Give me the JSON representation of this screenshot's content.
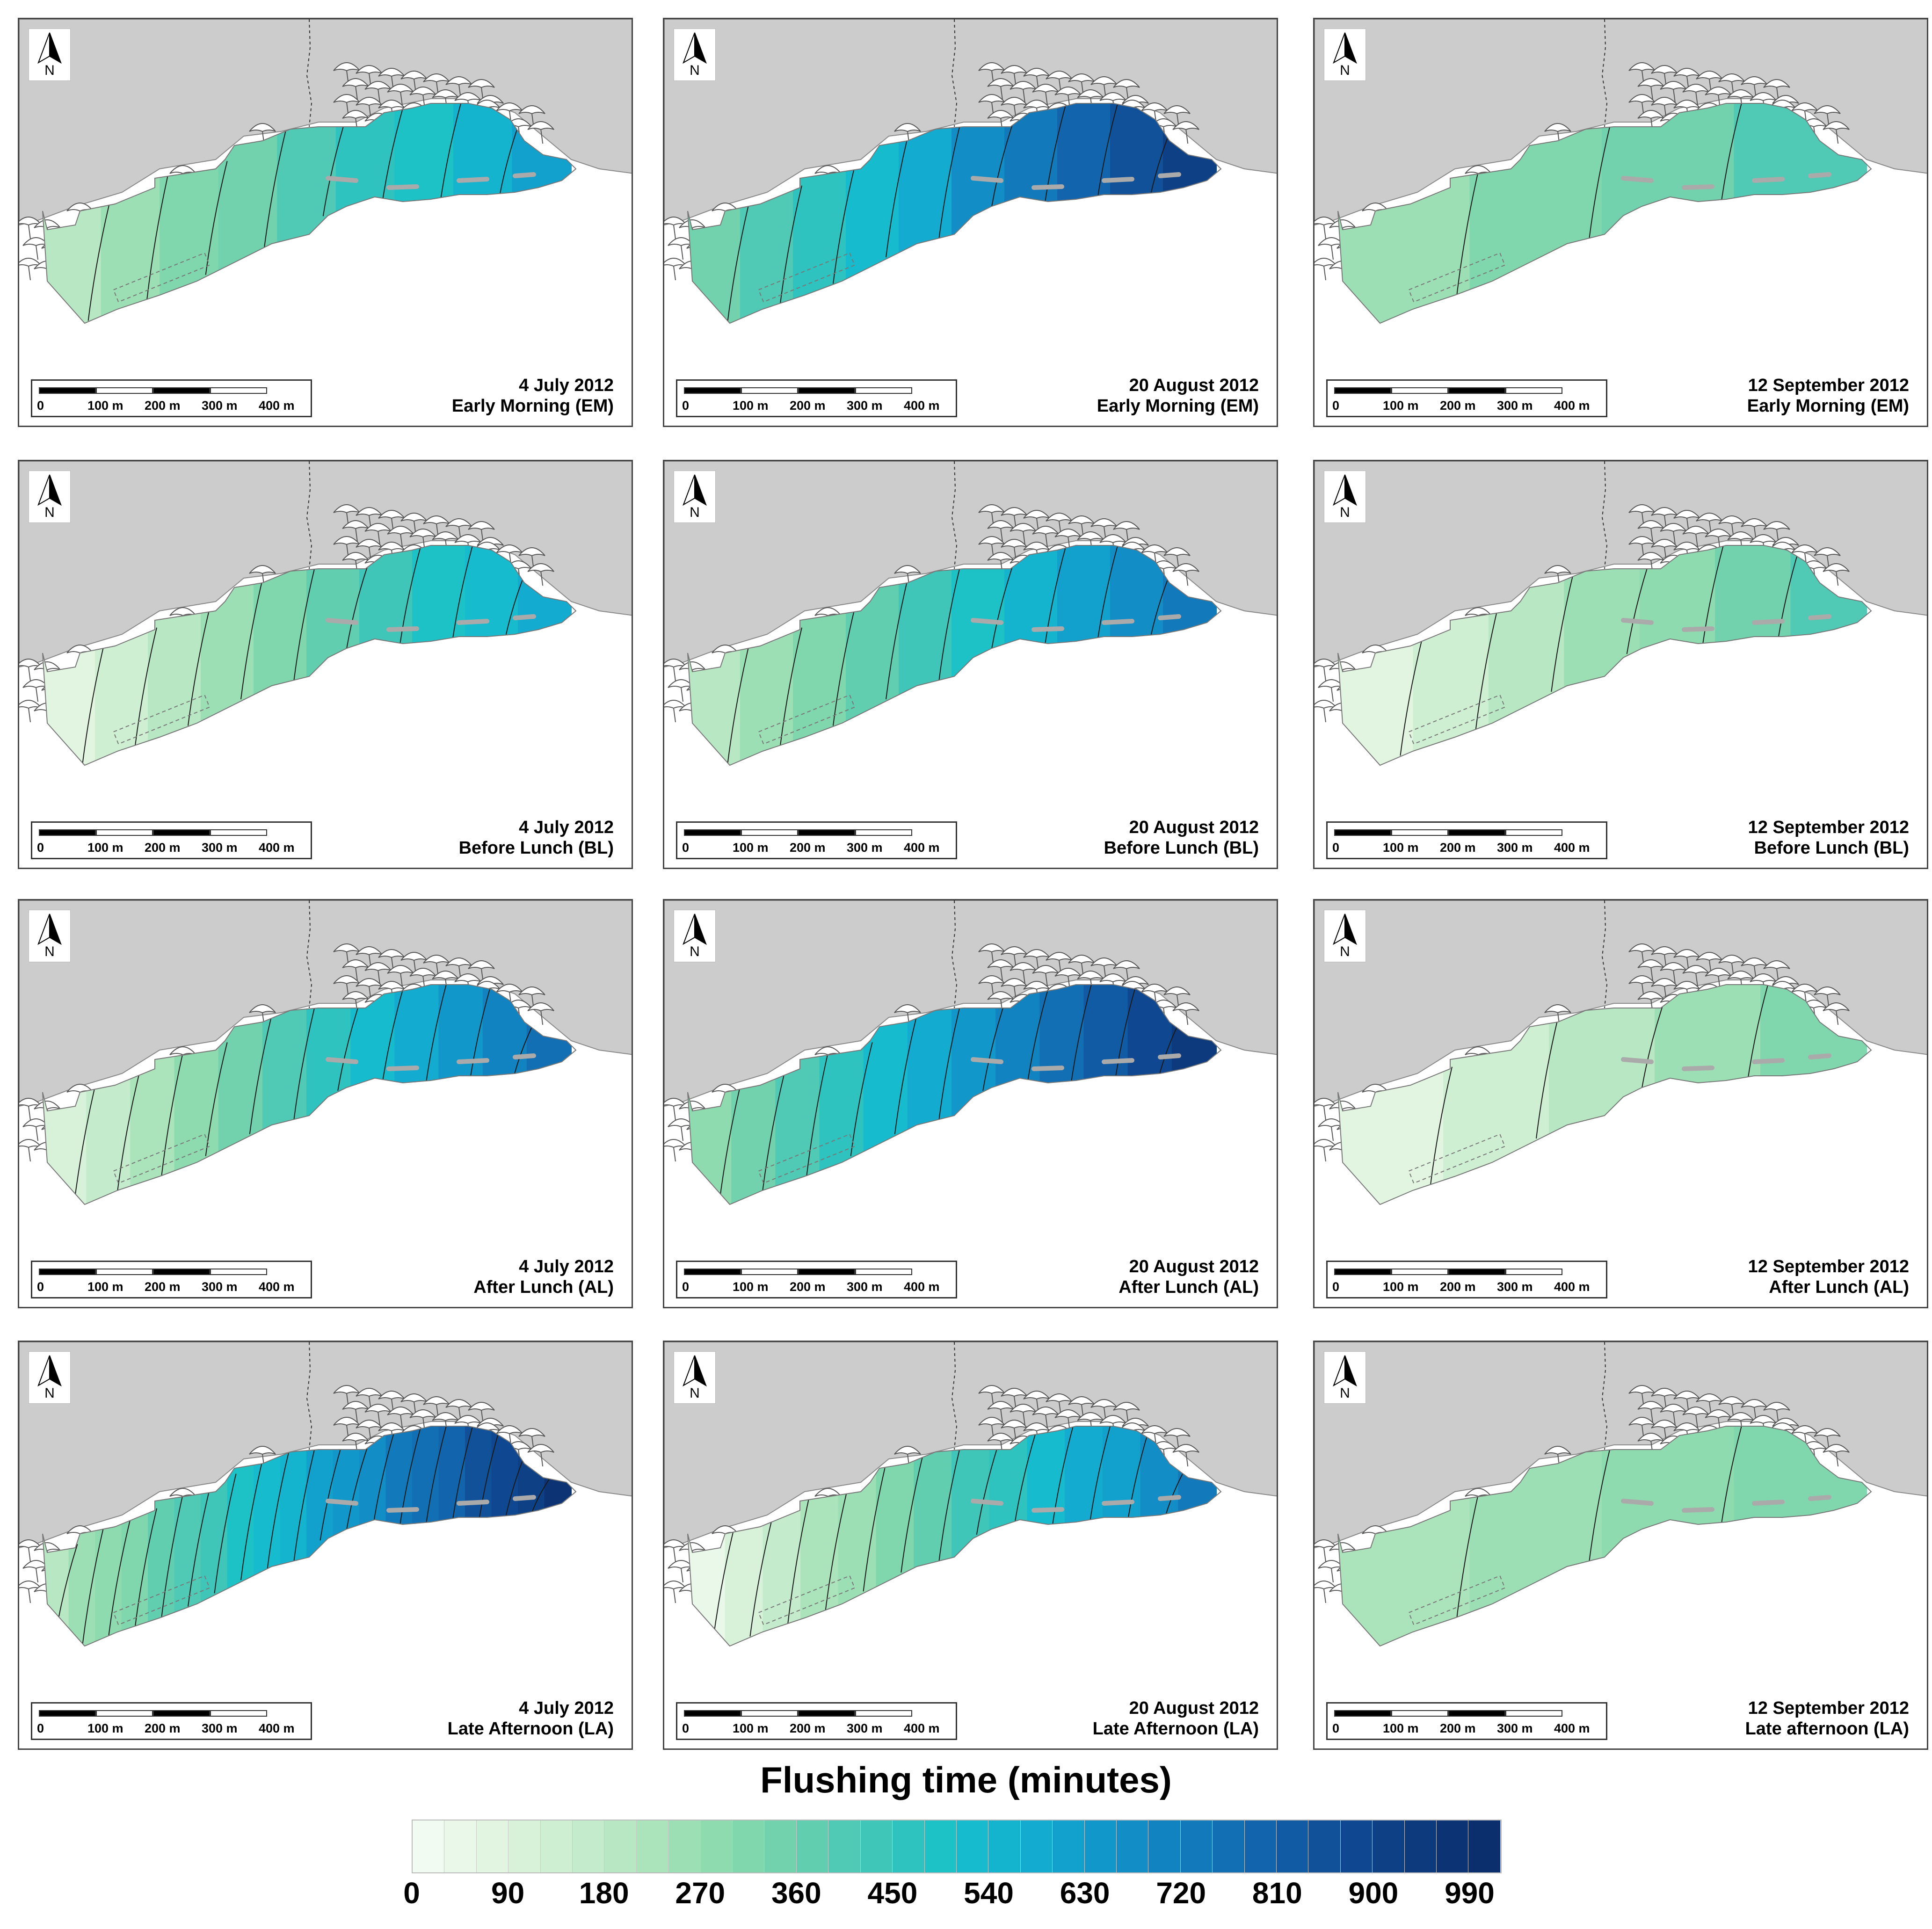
{
  "columns": [
    "4 July 2012",
    "20 August 2012",
    "12 September 2012"
  ],
  "panels": [
    {
      "date": "4 July 2012",
      "period": "Early Morning (EM)",
      "west": 180,
      "east": 630,
      "zones": 9
    },
    {
      "date": "20 August 2012",
      "period": "Early Morning (EM)",
      "west": 300,
      "east": 960,
      "zones": 10
    },
    {
      "date": "12 September 2012",
      "period": "Early Morning (EM)",
      "west": 240,
      "east": 420,
      "zones": 4
    },
    {
      "date": "4 July 2012",
      "period": "Before Lunch (BL)",
      "west": 60,
      "east": 620,
      "zones": 10
    },
    {
      "date": "20 August 2012",
      "period": "Before Lunch (BL)",
      "west": 150,
      "east": 760,
      "zones": 10
    },
    {
      "date": "12 September 2012",
      "period": "Before Lunch (BL)",
      "west": 60,
      "east": 430,
      "zones": 7
    },
    {
      "date": "4 July 2012",
      "period": "After Lunch (AL)",
      "west": 60,
      "east": 780,
      "zones": 12
    },
    {
      "date": "20 August 2012",
      "period": "After Lunch (AL)",
      "west": 240,
      "east": 990,
      "zones": 12
    },
    {
      "date": "12 September 2012",
      "period": "After Lunch (AL)",
      "west": 60,
      "east": 330,
      "zones": 5
    },
    {
      "date": "4 July 2012",
      "period": "Late Afternoon (LA)",
      "west": 180,
      "east": 990,
      "zones": 20
    },
    {
      "date": "20 August 2012",
      "period": "Late Afternoon (LA)",
      "west": 30,
      "east": 760,
      "zones": 14
    },
    {
      "date": "12 September 2012",
      "period": "Late afternoon (LA)",
      "west": 210,
      "east": 330,
      "zones": 4
    }
  ],
  "north_label": "N",
  "scalebar": {
    "labels": [
      "0",
      "100",
      "200",
      "300",
      "400"
    ],
    "unit": "m"
  },
  "legend": {
    "title": "Flushing time (minutes)",
    "min": 0,
    "max": 1020,
    "step": 30,
    "tick_labels": [
      "0",
      "90",
      "180",
      "270",
      "360",
      "450",
      "540",
      "630",
      "720",
      "810",
      "900",
      "990"
    ],
    "colors": [
      "#f2fbf2",
      "#eaf8ea",
      "#e1f5e1",
      "#d8f2da",
      "#cfefd3",
      "#c4ebcb",
      "#b8e7c3",
      "#abe3bb",
      "#9ddfb4",
      "#8fdbb0",
      "#80d7ad",
      "#71d2ad",
      "#61ceb0",
      "#50cab4",
      "#3fc6b8",
      "#2ec3be",
      "#1dc2c6",
      "#16bccd",
      "#14b4cf",
      "#13abcf",
      "#12a1cd",
      "#1297ca",
      "#128dc6",
      "#1283c1",
      "#1279bb",
      "#126fb4",
      "#1265ad",
      "#115ba4",
      "#10519a",
      "#0f4890",
      "#0e4086",
      "#0d397d",
      "#0c3374",
      "#0b2e6c"
    ]
  }
}
